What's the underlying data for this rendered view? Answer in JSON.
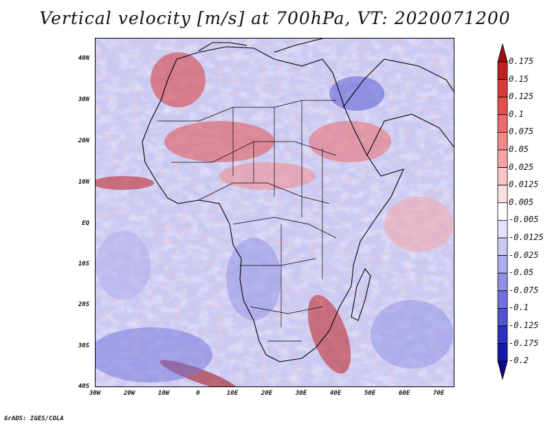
{
  "title": "Vertical velocity [m/s] at 700hPa, VT: 2020071200",
  "credit": "GrADS: IGES/COLA",
  "map": {
    "lat_labels": [
      "40N",
      "30N",
      "20N",
      "10N",
      "EQ",
      "10S",
      "20S",
      "30S",
      "40S"
    ],
    "lon_labels": [
      "30W",
      "20W",
      "10W",
      "0",
      "10E",
      "20E",
      "30E",
      "40E",
      "50E",
      "60E",
      "70E"
    ],
    "lat_range": [
      -40,
      45
    ],
    "lon_range": [
      -30,
      75
    ]
  },
  "colorbar": {
    "levels": [
      "0.175",
      "0.15",
      "0.125",
      "0.1",
      "0.075",
      "0.05",
      "0.025",
      "0.0125",
      "0.005",
      "-0.005",
      "-0.0125",
      "-0.025",
      "-0.05",
      "-0.075",
      "-0.1",
      "-0.125",
      "-0.175",
      "-0.2"
    ],
    "colors": [
      "#a01010",
      "#c02020",
      "#d83a3a",
      "#e45050",
      "#ec6c6c",
      "#f08a8a",
      "#f4a6a6",
      "#f8c4c4",
      "#fbe0e0",
      "#ffffff",
      "#e2e2fb",
      "#c8c8f4",
      "#acacee",
      "#9090e6",
      "#7272de",
      "#5252d2",
      "#3030c0",
      "#1818a8",
      "#0a0a90"
    ]
  }
}
